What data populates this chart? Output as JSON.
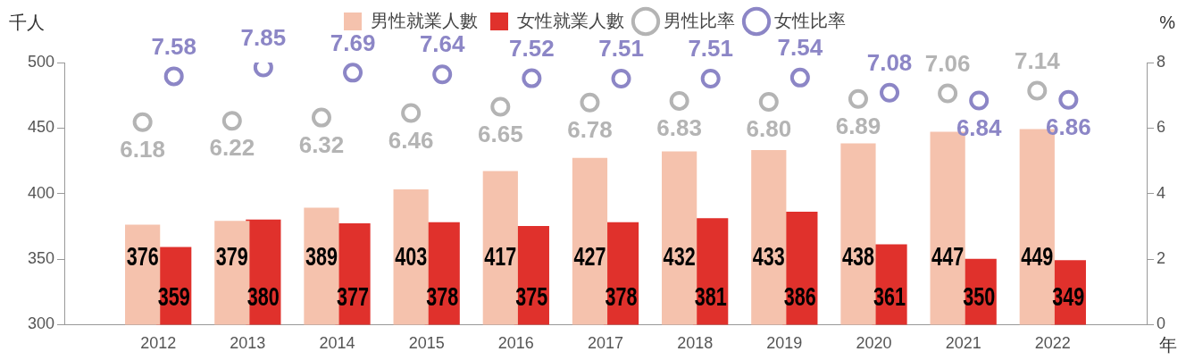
{
  "chart_data": {
    "type": "bar",
    "xlabel": "年",
    "ylabel": "千人",
    "y2label": "%",
    "categories": [
      "2012",
      "2013",
      "2014",
      "2015",
      "2016",
      "2017",
      "2018",
      "2019",
      "2020",
      "2021",
      "2022"
    ],
    "series": [
      {
        "name": "男性就業人數",
        "type": "bar",
        "color": "#f5c2ad",
        "values": [
          376,
          379,
          389,
          403,
          417,
          427,
          432,
          433,
          438,
          447,
          449
        ]
      },
      {
        "name": "女性就業人數",
        "type": "bar",
        "color": "#e0312c",
        "values": [
          359,
          380,
          377,
          378,
          375,
          378,
          381,
          386,
          361,
          350,
          349
        ]
      },
      {
        "name": "男性比率",
        "type": "scatter",
        "axis": "y2",
        "color": "#b4b4b4",
        "values": [
          6.18,
          6.22,
          6.32,
          6.46,
          6.65,
          6.78,
          6.83,
          6.8,
          6.89,
          7.06,
          7.14
        ],
        "value_labels": [
          "6.18",
          "6.22",
          "6.32",
          "6.46",
          "6.65",
          "6.78",
          "6.83",
          "6.80",
          "6.89",
          "7.06",
          "7.14"
        ]
      },
      {
        "name": "女性比率",
        "type": "scatter",
        "axis": "y2",
        "color": "#8c86c6",
        "values": [
          7.58,
          7.85,
          7.69,
          7.64,
          7.52,
          7.51,
          7.51,
          7.54,
          7.08,
          6.84,
          6.86
        ],
        "value_labels": [
          "7.58",
          "7.85",
          "7.69",
          "7.64",
          "7.52",
          "7.51",
          "7.51",
          "7.54",
          "7.08",
          "6.84",
          "6.86"
        ]
      }
    ],
    "ylim": [
      300,
      500
    ],
    "yticks": [
      300,
      350,
      400,
      450,
      500
    ],
    "y2lim": [
      0,
      8
    ],
    "y2ticks": [
      0,
      2,
      4,
      6,
      8
    ],
    "marker": "circle",
    "data_labels": true,
    "legend": "top",
    "grid": false
  }
}
